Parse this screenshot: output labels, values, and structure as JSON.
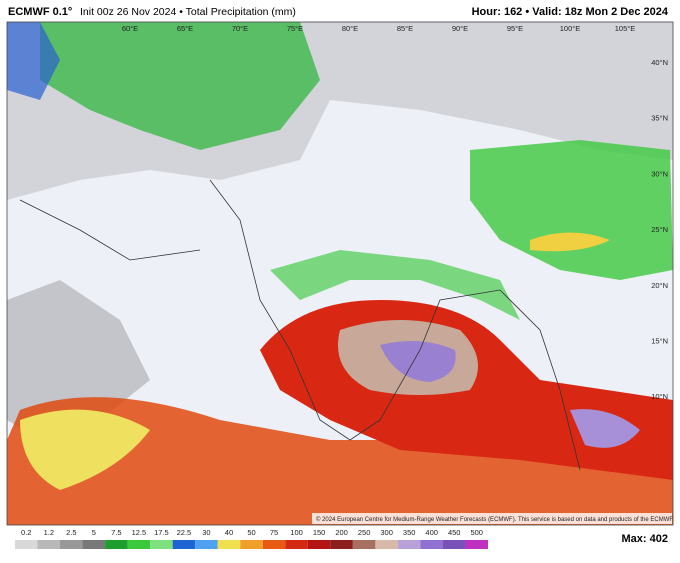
{
  "header": {
    "model": "ECMWF 0.1°",
    "description": "Init 00z 26 Nov 2024 • Total Precipitation (mm)",
    "valid": "Hour: 162 • Valid: 18z Mon 2 Dec 2024"
  },
  "map": {
    "lon_labels": [
      "60°E",
      "65°E",
      "70°E",
      "75°E",
      "80°E",
      "85°E",
      "90°E",
      "95°E",
      "100°E",
      "105°E"
    ],
    "lat_labels": [
      "40°N",
      "35°N",
      "30°N",
      "25°N",
      "20°N",
      "15°N",
      "10°N"
    ],
    "copyright": "© 2024 European Centre for Medium-Range Weather Forecasts (ECMWF). This service is based on data and products of the ECMWF."
  },
  "colorbar": {
    "labels": [
      0.2,
      1.2,
      2.5,
      5,
      7.5,
      12.5,
      17.5,
      22.5,
      30,
      40,
      50,
      75,
      100,
      150,
      200,
      250,
      300,
      350,
      400,
      450,
      500
    ],
    "colors": [
      "#d8d8d8",
      "#b8b8b8",
      "#989898",
      "#787878",
      "#1e9e2e",
      "#3cc83c",
      "#7ee07e",
      "#1e64d2",
      "#50a0f0",
      "#f0e050",
      "#f0a028",
      "#e85a14",
      "#d22814",
      "#b41414",
      "#8c1e1e",
      "#a87060",
      "#d8b8a8",
      "#b8a0d8",
      "#9070d0",
      "#7850b8",
      "#c030c0"
    ],
    "max": "Max: 402"
  }
}
